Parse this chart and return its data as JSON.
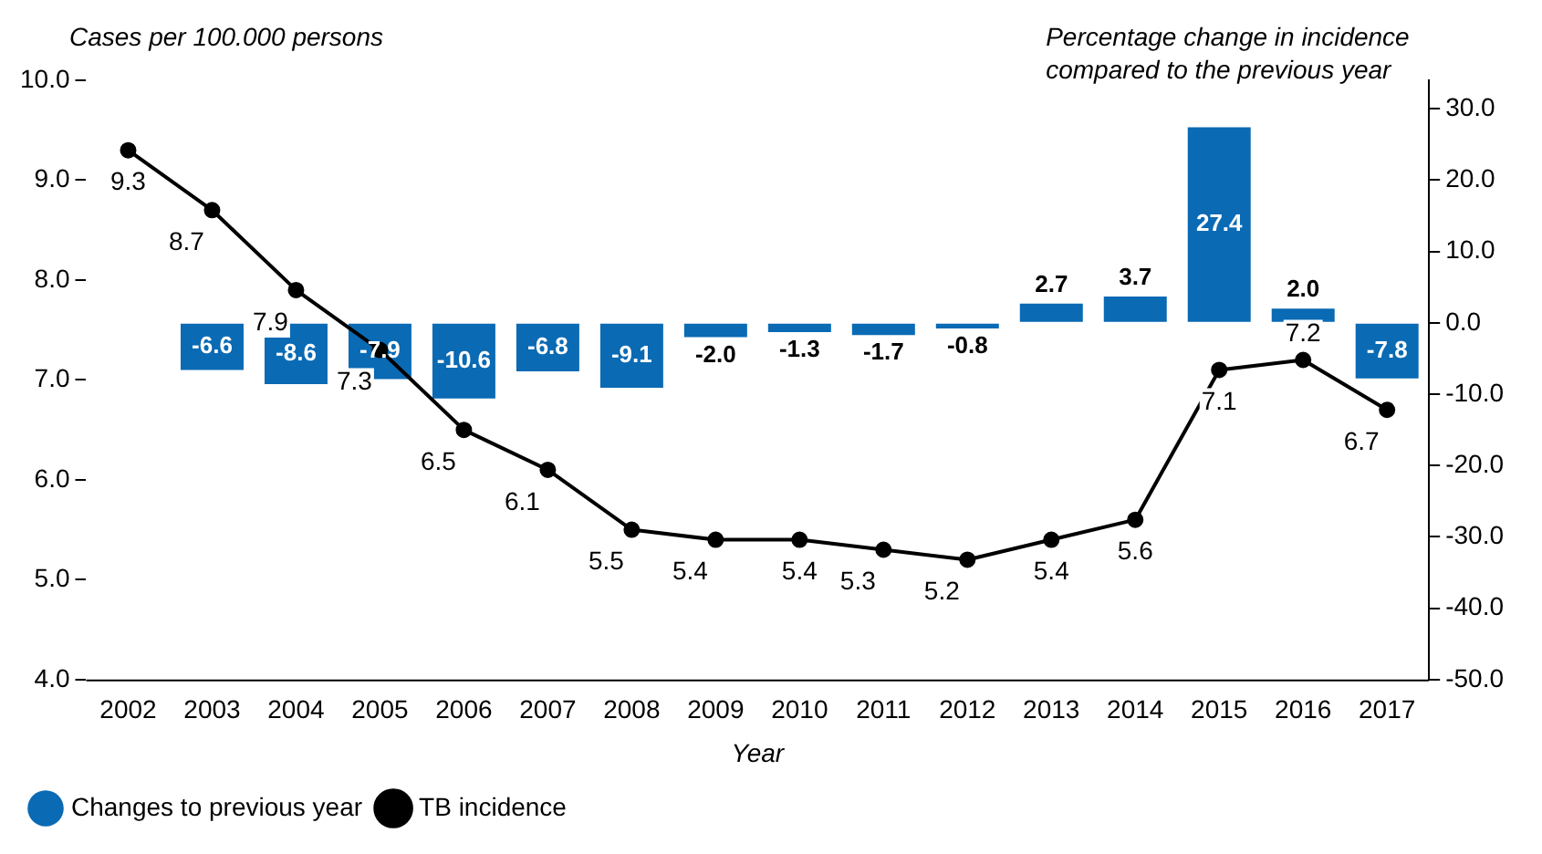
{
  "chart_data": {
    "type": "bar",
    "xlabel": "Year",
    "ylabel": "Cases per 100.000 persons",
    "y2label": "Percentage change in incidence compared to the previous year",
    "categories": [
      "2002",
      "2003",
      "2004",
      "2005",
      "2006",
      "2007",
      "2008",
      "2009",
      "2010",
      "2011",
      "2012",
      "2013",
      "2014",
      "2015",
      "2016",
      "2017"
    ],
    "series": [
      {
        "name": "Changes to previous year",
        "type": "bar",
        "axis": "y2",
        "color": "#0a6ab4",
        "values": [
          null,
          -6.6,
          -8.6,
          -7.9,
          -10.6,
          -6.8,
          -9.1,
          -2.0,
          -1.3,
          -1.7,
          -0.8,
          2.7,
          3.7,
          27.4,
          2.0,
          -7.8
        ],
        "value_labels": [
          null,
          "-6.6",
          "-8.6",
          "-7.9",
          "-10.6",
          "-6.8",
          "-9.1",
          "-2.0",
          "-1.3",
          "-1.7",
          "-0.8",
          "2.7",
          "3.7",
          "27.4",
          "2.0",
          "-7.8"
        ]
      },
      {
        "name": "TB incidence",
        "type": "line",
        "color": "#000000",
        "values": [
          9.3,
          8.7,
          7.9,
          7.3,
          6.5,
          6.1,
          5.5,
          5.4,
          5.4,
          5.3,
          5.2,
          5.4,
          5.6,
          7.1,
          7.2,
          6.7
        ],
        "value_labels": [
          "9.3",
          "8.7",
          "7.9",
          "7.3",
          "6.5",
          "6.1",
          "5.5",
          "5.4",
          "5.4",
          "5.3",
          "5.2",
          "5.4",
          "5.6",
          "7.1",
          "7.2",
          "6.7"
        ]
      }
    ],
    "ylim": [
      4,
      10
    ],
    "yticks": [
      {
        "value": 4,
        "label": "4.0"
      },
      {
        "value": 5,
        "label": "5.0"
      },
      {
        "value": 6,
        "label": "6.0"
      },
      {
        "value": 7,
        "label": "7.0"
      },
      {
        "value": 8,
        "label": "8.0"
      },
      {
        "value": 9,
        "label": "9.0"
      },
      {
        "value": 10,
        "label": "10.0"
      }
    ],
    "y2lim": [
      -50,
      34
    ],
    "y2ticks": [
      {
        "value": -50,
        "label": "-50.0"
      },
      {
        "value": -40,
        "label": "-40.0"
      },
      {
        "value": -30,
        "label": "-30.0"
      },
      {
        "value": -20,
        "label": "-20.0"
      },
      {
        "value": -10,
        "label": "-10.0"
      },
      {
        "value": 0,
        "label": "0.0"
      },
      {
        "value": 10,
        "label": "10.0"
      },
      {
        "value": 20,
        "label": "20.0"
      },
      {
        "value": 30,
        "label": "30.0"
      }
    ],
    "grid": false,
    "legend": "bottom left",
    "marker": "circle",
    "line_style": "solid"
  }
}
